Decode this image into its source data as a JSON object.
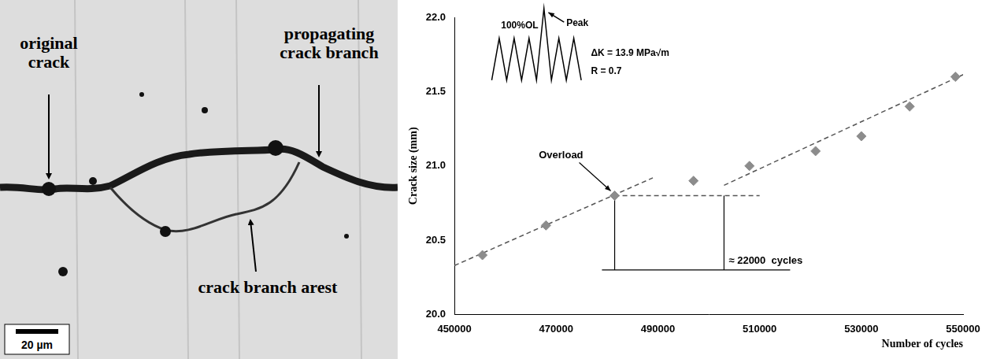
{
  "micrograph": {
    "labels": {
      "original": [
        "original",
        "crack"
      ],
      "propagating": [
        "propagating",
        "crack branch"
      ],
      "arrest": [
        "crack branch arest"
      ]
    },
    "scale_bar": "20 µm"
  },
  "chart_data": {
    "type": "scatter",
    "x_label": "Number of cycles",
    "y_label": "Crack size (mm)",
    "x": [
      455500,
      468000,
      481500,
      497000,
      508000,
      521000,
      530000,
      539500,
      548500
    ],
    "values": [
      20.4,
      20.6,
      20.8,
      20.9,
      21.0,
      21.1,
      21.2,
      21.4,
      21.6
    ],
    "color": "#8c8c8c",
    "marker": "diamond",
    "lines": [
      {
        "x": [
          450000,
          489000
        ],
        "values": [
          20.33,
          20.92
        ],
        "line_style": "dashed",
        "color": "#555555"
      },
      {
        "x": [
          503000,
          551000
        ],
        "values": [
          20.87,
          21.63
        ],
        "line_style": "dashed",
        "color": "#555555"
      },
      {
        "x": [
          481500,
          510000
        ],
        "values": [
          20.8,
          20.8
        ],
        "line_style": "dashed",
        "color": "#555555"
      },
      {
        "x": [
          481500,
          481500
        ],
        "values": [
          20.8,
          20.3
        ],
        "line_style": "solid",
        "color": "#000000"
      },
      {
        "x": [
          503000,
          503000
        ],
        "values": [
          20.8,
          20.3
        ],
        "line_style": "solid",
        "color": "#000000"
      },
      {
        "x": [
          479000,
          516000
        ],
        "values": [
          20.3,
          20.3
        ],
        "line_style": "solid",
        "color": "#000000"
      }
    ],
    "annotations": {
      "load_label": "100%OL",
      "peak_label": "Peak",
      "delta_k": "ΔK = 13.9 MPa√m",
      "r_ratio": "R = 0.7",
      "overload": "Overload",
      "delay": "≈ 22000  cycles"
    },
    "xlim": [
      450000,
      550000
    ],
    "xticks": [
      450000,
      470000,
      490000,
      510000,
      530000,
      550000
    ],
    "ylim": [
      20.0,
      22.0
    ],
    "yticks": [
      {
        "value": 20.0,
        "label": "20.0"
      },
      20.5,
      {
        "value": 21.0,
        "label": "21.0"
      },
      21.5,
      {
        "value": 22.0,
        "label": "22.0"
      }
    ],
    "grid": false
  }
}
